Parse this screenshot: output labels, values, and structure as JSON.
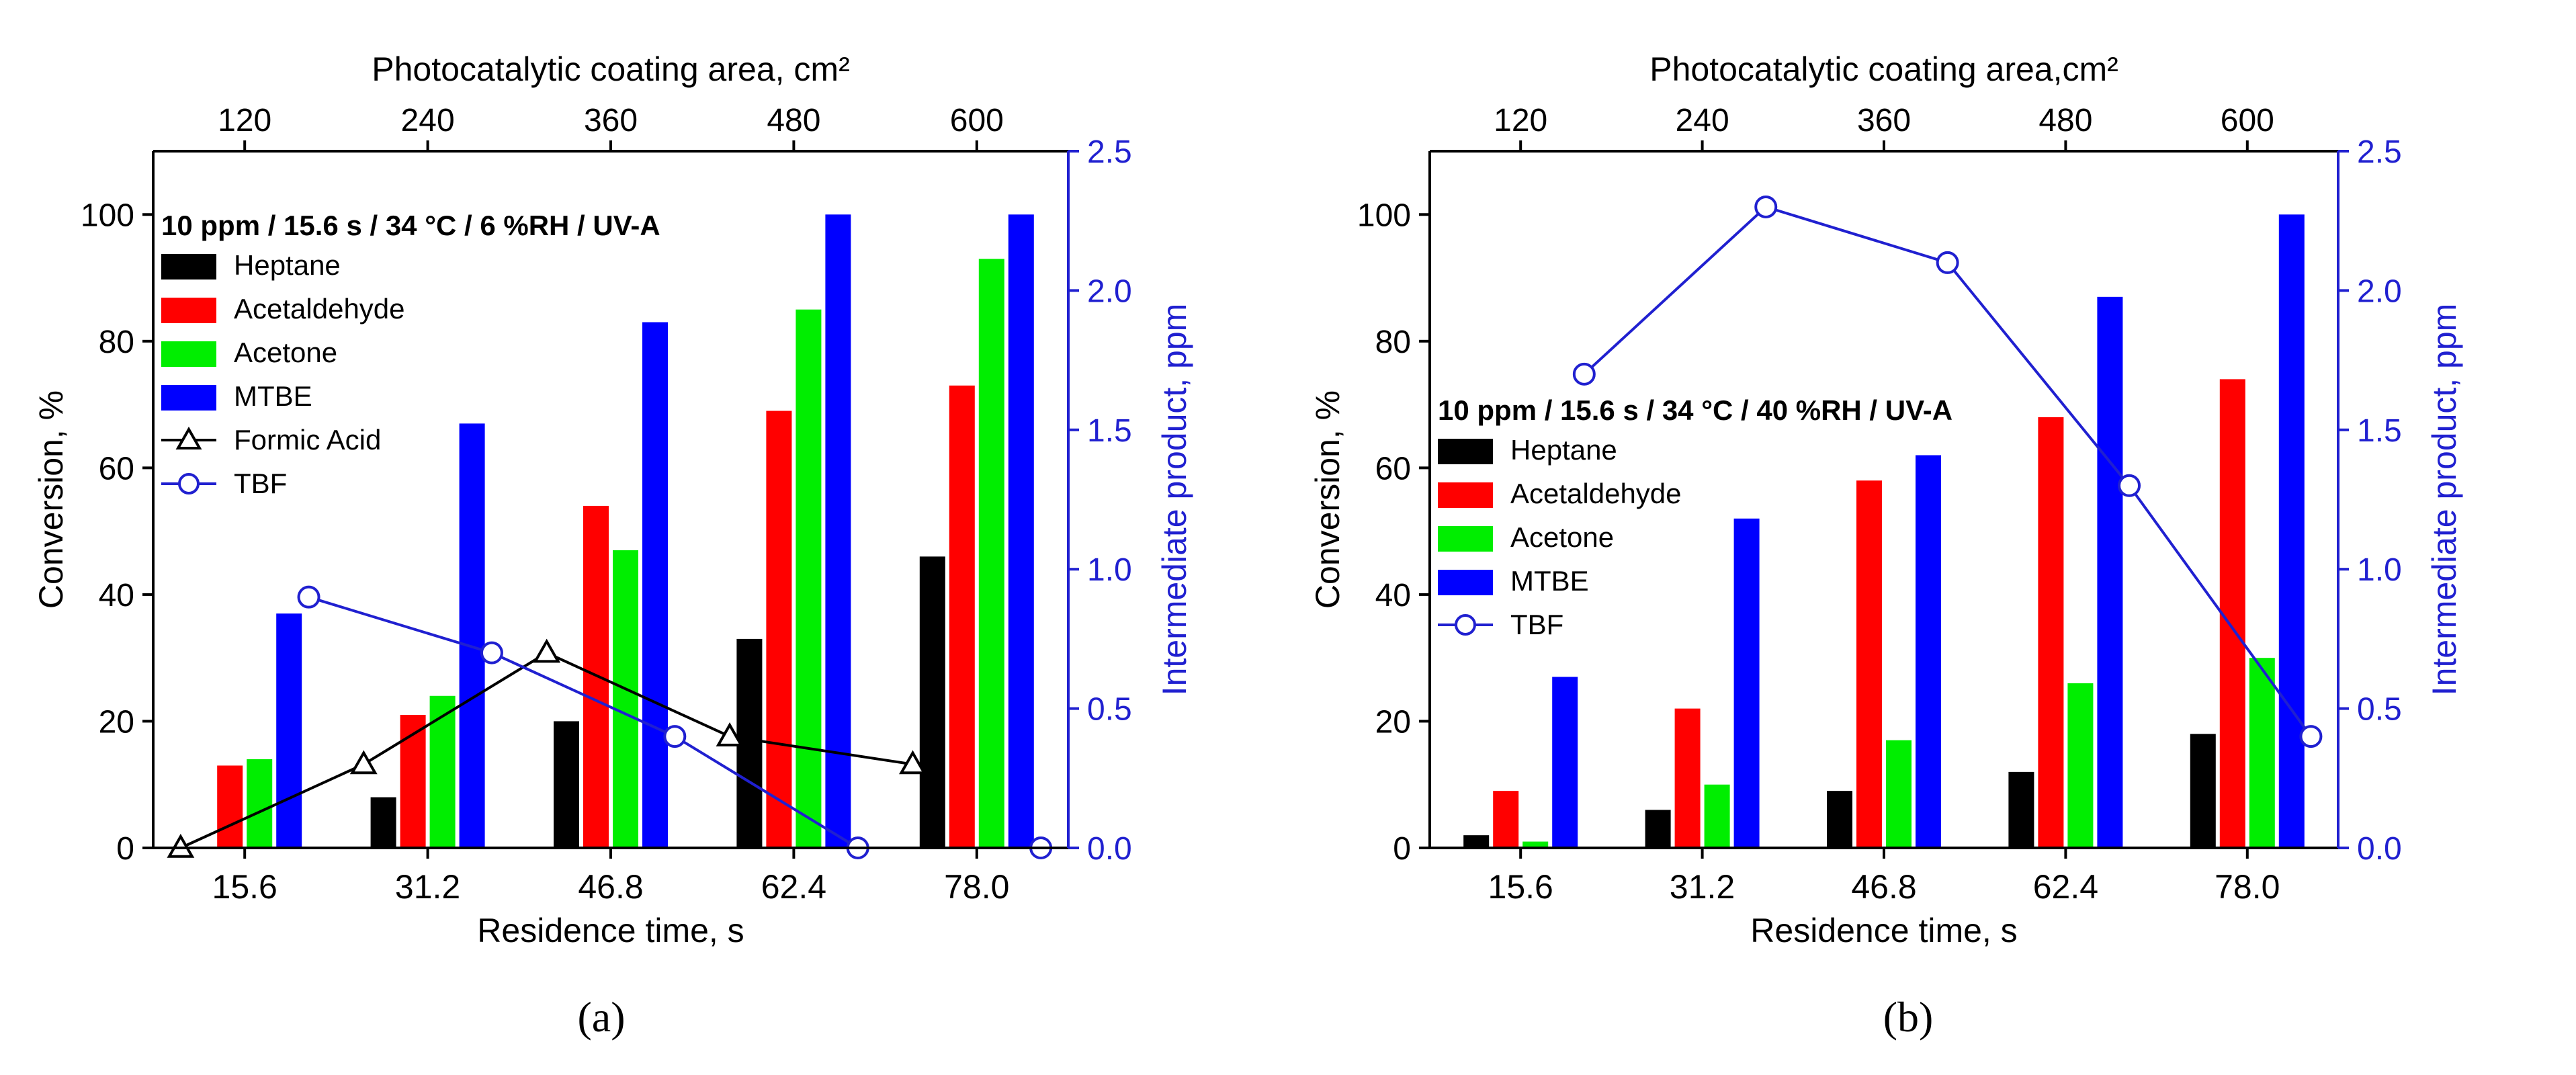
{
  "colors": {
    "Heptane": "#000000",
    "Acetaldehyde": "#ff0000",
    "Acetone": "#00ee00",
    "MTBE": "#0000ff",
    "Formic Acid": "#000000",
    "TBF": "#2020d0",
    "right_axis": "#2020d0"
  },
  "chart_data": [
    {
      "type": "bar",
      "panel_label": "(a)",
      "annotation": "10 ppm / 15.6 s / 34 °C / 6 %RH / UV-A",
      "xlabel": "Residence time, s",
      "ylabel": "Conversion, %",
      "y2label": "Intermediate product, ppm",
      "x2label": "Photocatalytic coating area, cm²",
      "categories": [
        "15.6",
        "31.2",
        "46.8",
        "62.4",
        "78.0"
      ],
      "top_categories": [
        "120",
        "240",
        "360",
        "480",
        "600"
      ],
      "ylim": [
        0,
        110
      ],
      "y_ticks": [
        "0",
        "20",
        "40",
        "60",
        "80",
        "100"
      ],
      "y2lim": [
        0,
        2.5
      ],
      "y2_ticks": [
        "0.0",
        "0.5",
        "1.0",
        "1.5",
        "2.0",
        "2.5"
      ],
      "series": [
        {
          "name": "Heptane",
          "values": [
            0,
            8,
            20,
            33,
            46
          ]
        },
        {
          "name": "Acetaldehyde",
          "values": [
            13,
            21,
            54,
            69,
            73
          ]
        },
        {
          "name": "Acetone",
          "values": [
            14,
            24,
            47,
            85,
            93
          ]
        },
        {
          "name": "MTBE",
          "values": [
            37,
            67,
            83,
            100,
            100
          ]
        }
      ],
      "line_series": [
        {
          "name": "Formic Acid",
          "marker": "triangle",
          "axis": "right",
          "x_offset": -0.35,
          "values": [
            0.0,
            0.3,
            0.7,
            0.4,
            0.3
          ]
        },
        {
          "name": "TBF",
          "marker": "circle",
          "axis": "right",
          "x_offset": 0.35,
          "values": [
            0.9,
            0.7,
            0.4,
            0.0,
            0.0
          ]
        }
      ]
    },
    {
      "type": "bar",
      "panel_label": "(b)",
      "annotation": "10 ppm / 15.6 s / 34 °C / 40 %RH / UV-A",
      "xlabel": "Residence time, s",
      "ylabel": "Conversion, %",
      "y2label": "Intermediate product, ppm",
      "x2label": "Photocatalytic coating area,cm²",
      "categories": [
        "15.6",
        "31.2",
        "46.8",
        "62.4",
        "78.0"
      ],
      "top_categories": [
        "120",
        "240",
        "360",
        "480",
        "600"
      ],
      "ylim": [
        0,
        110
      ],
      "y_ticks": [
        "0",
        "20",
        "40",
        "60",
        "80",
        "100"
      ],
      "y2lim": [
        0,
        2.5
      ],
      "y2_ticks": [
        "0.0",
        "0.5",
        "1.0",
        "1.5",
        "2.0",
        "2.5"
      ],
      "series": [
        {
          "name": "Heptane",
          "values": [
            2,
            6,
            9,
            12,
            18
          ]
        },
        {
          "name": "Acetaldehyde",
          "values": [
            9,
            22,
            58,
            68,
            74
          ]
        },
        {
          "name": "Acetone",
          "values": [
            1,
            10,
            17,
            26,
            30
          ]
        },
        {
          "name": "MTBE",
          "values": [
            27,
            52,
            62,
            87,
            100
          ]
        }
      ],
      "line_series": [
        {
          "name": "TBF",
          "marker": "circle",
          "axis": "right",
          "x_offset": 0.35,
          "values": [
            1.7,
            2.3,
            2.1,
            1.3,
            0.4
          ]
        }
      ]
    }
  ]
}
